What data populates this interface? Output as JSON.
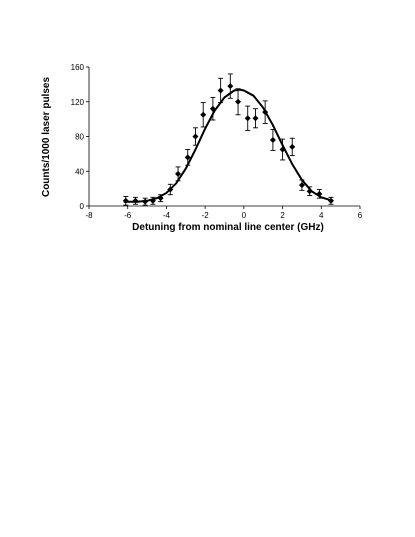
{
  "chart_data": {
    "type": "scatter",
    "title": "",
    "xlabel": "Detuning from nominal line center (GHz)",
    "ylabel": "Counts/1000 laser pulses",
    "xlim": [
      -8,
      6
    ],
    "ylim": [
      0,
      160
    ],
    "xticks": [
      -8,
      -6,
      -4,
      -2,
      0,
      2,
      4,
      6
    ],
    "yticks": [
      0,
      40,
      80,
      120,
      160
    ],
    "grid": false,
    "legend": "none",
    "colors": {
      "axis": "#000000",
      "markers": "#000000",
      "fit": "#000000"
    },
    "series": [
      {
        "type": "scatter-errorbars",
        "marker": "diamond",
        "points": [
          {
            "x": -6.1,
            "y": 6,
            "err": 5
          },
          {
            "x": -5.6,
            "y": 6,
            "err": 4
          },
          {
            "x": -5.1,
            "y": 5,
            "err": 4
          },
          {
            "x": -4.7,
            "y": 6,
            "err": 4
          },
          {
            "x": -4.3,
            "y": 9,
            "err": 4
          },
          {
            "x": -3.8,
            "y": 19,
            "err": 6
          },
          {
            "x": -3.4,
            "y": 37,
            "err": 8
          },
          {
            "x": -2.9,
            "y": 56,
            "err": 9
          },
          {
            "x": -2.5,
            "y": 80,
            "err": 10
          },
          {
            "x": -2.1,
            "y": 105,
            "err": 14
          },
          {
            "x": -1.6,
            "y": 112,
            "err": 13
          },
          {
            "x": -1.2,
            "y": 133,
            "err": 14
          },
          {
            "x": -0.7,
            "y": 138,
            "err": 14
          },
          {
            "x": -0.3,
            "y": 120,
            "err": 15
          },
          {
            "x": 0.2,
            "y": 101,
            "err": 14
          },
          {
            "x": 0.6,
            "y": 101,
            "err": 11
          },
          {
            "x": 1.1,
            "y": 108,
            "err": 13
          },
          {
            "x": 1.5,
            "y": 76,
            "err": 12
          },
          {
            "x": 2.0,
            "y": 65,
            "err": 12
          },
          {
            "x": 2.5,
            "y": 68,
            "err": 10
          },
          {
            "x": 3.0,
            "y": 24,
            "err": 6
          },
          {
            "x": 3.4,
            "y": 17,
            "err": 5
          },
          {
            "x": 3.9,
            "y": 14,
            "err": 5
          },
          {
            "x": 4.5,
            "y": 6,
            "err": 4
          }
        ]
      },
      {
        "type": "fit-line",
        "points": [
          {
            "x": -6.2,
            "y": 5
          },
          {
            "x": -5.5,
            "y": 5
          },
          {
            "x": -5.0,
            "y": 6
          },
          {
            "x": -4.5,
            "y": 9
          },
          {
            "x": -4.0,
            "y": 15
          },
          {
            "x": -3.5,
            "y": 26
          },
          {
            "x": -3.0,
            "y": 43
          },
          {
            "x": -2.5,
            "y": 65
          },
          {
            "x": -2.0,
            "y": 89
          },
          {
            "x": -1.5,
            "y": 110
          },
          {
            "x": -1.0,
            "y": 125
          },
          {
            "x": -0.5,
            "y": 133
          },
          {
            "x": -0.2,
            "y": 134
          },
          {
            "x": 0.0,
            "y": 133
          },
          {
            "x": 0.5,
            "y": 127
          },
          {
            "x": 1.0,
            "y": 113
          },
          {
            "x": 1.5,
            "y": 93
          },
          {
            "x": 2.0,
            "y": 70
          },
          {
            "x": 2.5,
            "y": 48
          },
          {
            "x": 3.0,
            "y": 30
          },
          {
            "x": 3.5,
            "y": 17
          },
          {
            "x": 4.0,
            "y": 10
          },
          {
            "x": 4.6,
            "y": 6
          }
        ]
      }
    ]
  }
}
